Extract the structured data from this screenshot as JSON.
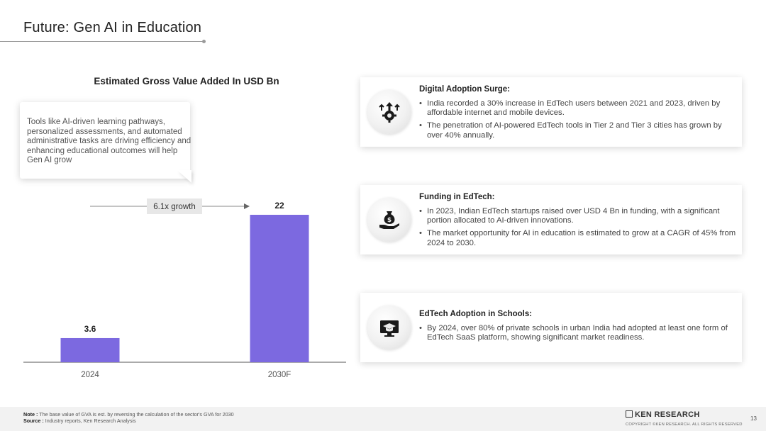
{
  "page": {
    "title": "Future: Gen AI in Education"
  },
  "callout": {
    "text": "Tools like AI-driven learning pathways, personalized assessments, and automated administrative tasks are driving efficiency and enhancing educational outcomes will help Gen AI grow"
  },
  "chart_data": {
    "type": "bar",
    "title": "Estimated Gross Value Added In USD Bn",
    "categories": [
      "2024",
      "2030F"
    ],
    "values": [
      3.6,
      22
    ],
    "data_labels": [
      "3.6",
      "22"
    ],
    "growth_label": "6.1x growth",
    "ylim": [
      0,
      22
    ],
    "grid": false,
    "bar_color": "#7c69e0"
  },
  "cards": [
    {
      "icon": "growth-gear-icon",
      "heading": "Digital Adoption Surge:",
      "bullets": [
        "India recorded a 30% increase in EdTech users between 2021 and 2023, driven by affordable internet and mobile devices.",
        "The penetration of AI-powered EdTech tools in Tier 2 and Tier 3 cities has grown by over 40% annually."
      ]
    },
    {
      "icon": "money-bag-hand-icon",
      "heading": "Funding in EdTech:",
      "bullets": [
        "In 2023, Indian EdTech startups raised over USD 4 Bn in funding, with a significant portion allocated to AI-driven innovations.",
        "The market opportunity for AI in education is estimated to grow at a CAGR of 45% from 2024 to 2030."
      ]
    },
    {
      "icon": "graduation-monitor-icon",
      "heading": "EdTech Adoption in Schools:",
      "bullets": [
        "By 2024, over 80% of private schools in urban India had adopted at least one form of EdTech SaaS platform, showing significant market readiness."
      ]
    }
  ],
  "footer": {
    "note_label": "Note :",
    "note_text": "The base value of GVA is est. by reversing the calculation of the sector's GVA for 2030",
    "source_label": "Source :",
    "source_text": "Industry reports, Ken Research Analysis",
    "logo_text": "KEN RESEARCH",
    "copyright": "COPYRIGHT ©KEN RESEARCH. ALL RIGHTS RESERVED",
    "page_number": "13"
  }
}
